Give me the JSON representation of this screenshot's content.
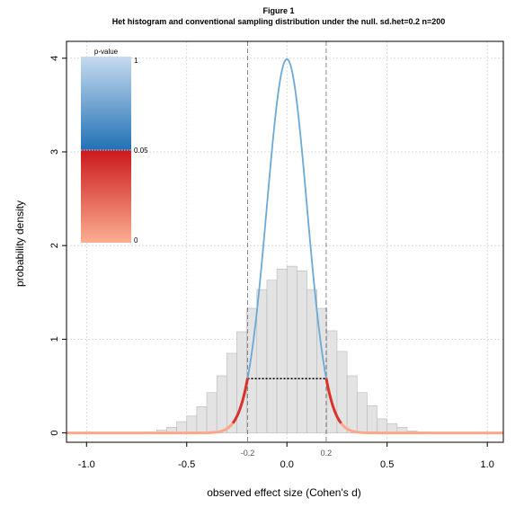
{
  "chart_data": {
    "type": "histogram",
    "title": "Figure 1",
    "subtitle": "Het histogram and conventional sampling distribution under the null. sd.het=0.2 n=200",
    "xlabel": "observed effect size (Cohen's d)",
    "ylabel": "probability density",
    "xlim": [
      -1.1,
      1.08
    ],
    "ylim": [
      -0.1,
      4.18
    ],
    "x_ticks": [
      -1.0,
      -0.5,
      0.0,
      0.5,
      1.0
    ],
    "x_tick_labels": [
      "-1.0",
      "-0.5",
      "0.0",
      "0.5",
      "1.0"
    ],
    "y_ticks": [
      0,
      1,
      2,
      3,
      4
    ],
    "y_tick_labels": [
      "0",
      "1",
      "2",
      "3",
      "4"
    ],
    "grid": true,
    "histogram": {
      "bin_width": 0.05,
      "bins_start": [
        -0.7,
        -0.65,
        -0.6,
        -0.55,
        -0.5,
        -0.45,
        -0.4,
        -0.35,
        -0.3,
        -0.25,
        -0.2,
        -0.15,
        -0.1,
        -0.05,
        0.0,
        0.05,
        0.1,
        0.15,
        0.2,
        0.25,
        0.3,
        0.35,
        0.4,
        0.45,
        0.5,
        0.55,
        0.6,
        0.65
      ],
      "density": [
        0.01,
        0.03,
        0.06,
        0.12,
        0.18,
        0.28,
        0.43,
        0.61,
        0.85,
        1.08,
        1.33,
        1.53,
        1.63,
        1.75,
        1.78,
        1.73,
        1.53,
        1.33,
        1.09,
        0.87,
        0.61,
        0.43,
        0.29,
        0.15,
        0.1,
        0.06,
        0.02,
        0.01
      ],
      "color": "#e3e3e3"
    },
    "null_curve": {
      "sd": 0.1,
      "peak_density": 3.99,
      "color_significant": "#d8322a",
      "color_nonsignificant": "#6aa9d8",
      "color_tails": "#fca78a"
    },
    "reference_lines": {
      "values": [
        -0.196,
        0.196
      ],
      "labels": [
        "-0.2",
        "0.2"
      ],
      "critical_density": 0.58
    },
    "legend": {
      "title": "p-value",
      "labels": [
        "1",
        "0.05",
        "0"
      ],
      "placement": "top-left",
      "blue_top": "#c6dbef",
      "blue_bottom": "#2171b5",
      "red_top": "#cb181d",
      "red_bottom": "#fcae91"
    }
  }
}
